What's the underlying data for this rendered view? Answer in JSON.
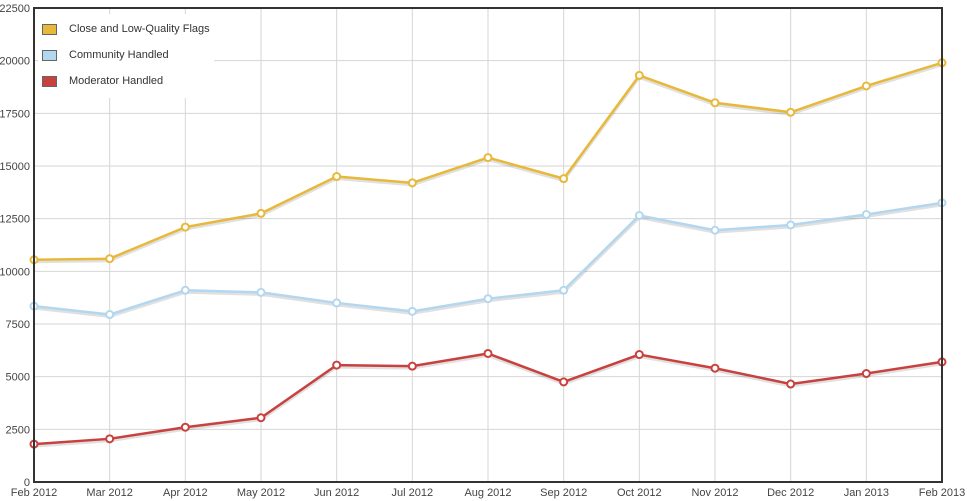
{
  "chart_data": {
    "type": "line",
    "categories": [
      "Feb 2012",
      "Mar 2012",
      "Apr 2012",
      "May 2012",
      "Jun 2012",
      "Jul 2012",
      "Aug 2012",
      "Sep 2012",
      "Oct 2012",
      "Nov 2012",
      "Dec 2012",
      "Jan 2013",
      "Feb 2013"
    ],
    "ylim": [
      0,
      22500
    ],
    "yticks": [
      0,
      2500,
      5000,
      7500,
      10000,
      12500,
      15000,
      17500,
      20000,
      22500
    ],
    "grid": true,
    "legend_position": "top-left",
    "series": [
      {
        "name": "Close and Low-Quality Flags",
        "color": "#e8b83a",
        "values": [
          10550,
          10600,
          12100,
          12750,
          14500,
          14200,
          15400,
          14400,
          19300,
          18000,
          17550,
          18800,
          19900
        ]
      },
      {
        "name": "Community Handled",
        "color": "#b3d7ef",
        "values": [
          8350,
          7950,
          9100,
          9000,
          8500,
          8100,
          8700,
          9100,
          12650,
          11950,
          12200,
          12700,
          13250
        ]
      },
      {
        "name": "Moderator Handled",
        "color": "#c9413f",
        "values": [
          1800,
          2050,
          2600,
          3050,
          5550,
          5500,
          6100,
          4750,
          6050,
          5400,
          4650,
          5150,
          5700
        ]
      }
    ]
  }
}
